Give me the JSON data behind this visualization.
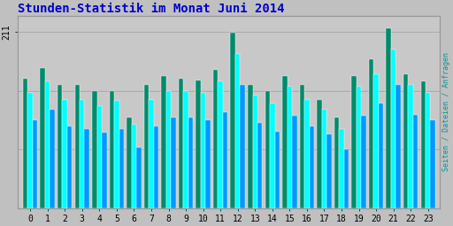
{
  "title": "Stunden-Statistik im Monat Juni 2014",
  "title_color": "#0000CC",
  "ylabel_right": "Seiten / Dateien / Anfragen",
  "ylabel_right_color": "#009999",
  "hours": [
    0,
    1,
    2,
    3,
    4,
    5,
    6,
    7,
    8,
    9,
    10,
    11,
    12,
    13,
    14,
    15,
    16,
    17,
    18,
    19,
    20,
    21,
    22,
    23
  ],
  "seiten": [
    155,
    168,
    148,
    148,
    140,
    140,
    108,
    148,
    158,
    155,
    153,
    165,
    210,
    148,
    140,
    158,
    148,
    130,
    108,
    158,
    178,
    215,
    160,
    152
  ],
  "dateien": [
    138,
    152,
    130,
    130,
    122,
    128,
    100,
    130,
    140,
    140,
    138,
    152,
    185,
    135,
    125,
    145,
    130,
    118,
    95,
    145,
    160,
    190,
    148,
    138
  ],
  "anfragen": [
    105,
    118,
    98,
    95,
    90,
    95,
    72,
    98,
    108,
    108,
    105,
    115,
    148,
    102,
    92,
    110,
    98,
    88,
    70,
    110,
    125,
    148,
    112,
    105
  ],
  "color_seiten": "#008B6B",
  "color_dateien": "#00FFFF",
  "color_anfragen": "#0099FF",
  "background_plot": "#C8C8C8",
  "background_fig": "#C0C0C0",
  "bar_width": 0.28,
  "ylim_max": 230,
  "ytick_val": 211,
  "fontsize_title": 10,
  "fontsize_ticks": 7,
  "grid_vals": [
    70,
    140,
    211
  ]
}
